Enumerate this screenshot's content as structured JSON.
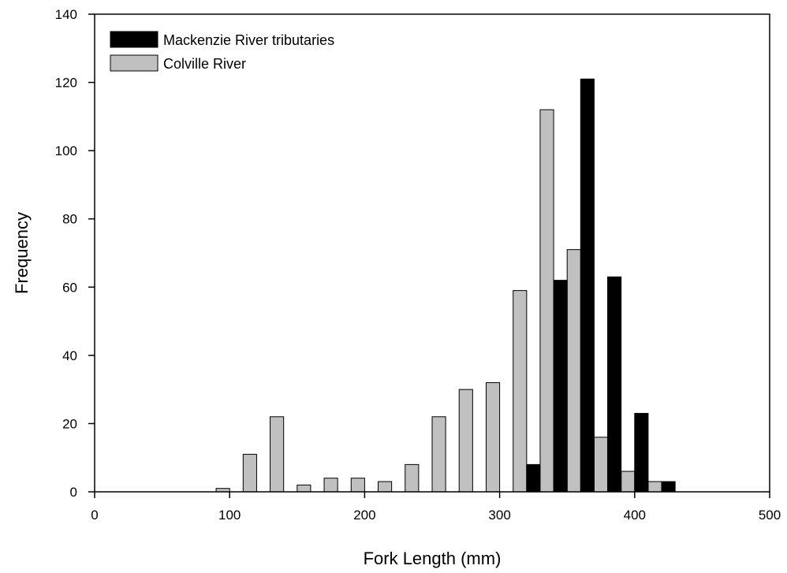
{
  "chart_data": {
    "type": "bar",
    "xlabel": "Fork Length (mm)",
    "ylabel": "Frequency",
    "xlim": [
      0,
      500
    ],
    "ylim": [
      0,
      140
    ],
    "x_ticks": [
      "0",
      "100",
      "200",
      "300",
      "400",
      "500"
    ],
    "y_ticks": [
      "0",
      "20",
      "40",
      "60",
      "80",
      "100",
      "120",
      "140"
    ],
    "grid": false,
    "legend_position": "top-left",
    "bin_width": 20,
    "bin_starts": [
      90,
      110,
      130,
      150,
      170,
      190,
      210,
      230,
      250,
      270,
      290,
      310,
      330,
      350,
      370,
      390,
      410
    ],
    "series": [
      {
        "name": "Mackenzie River tributaries",
        "color": "#000000",
        "values": [
          0,
          0,
          0,
          0,
          0,
          0,
          0,
          0,
          0,
          0,
          0,
          8,
          62,
          121,
          63,
          23,
          3
        ]
      },
      {
        "name": "Colville River",
        "color": "#c0c0c0",
        "values": [
          1,
          11,
          22,
          2,
          4,
          4,
          3,
          8,
          22,
          30,
          32,
          59,
          112,
          71,
          16,
          6,
          3
        ]
      }
    ]
  }
}
